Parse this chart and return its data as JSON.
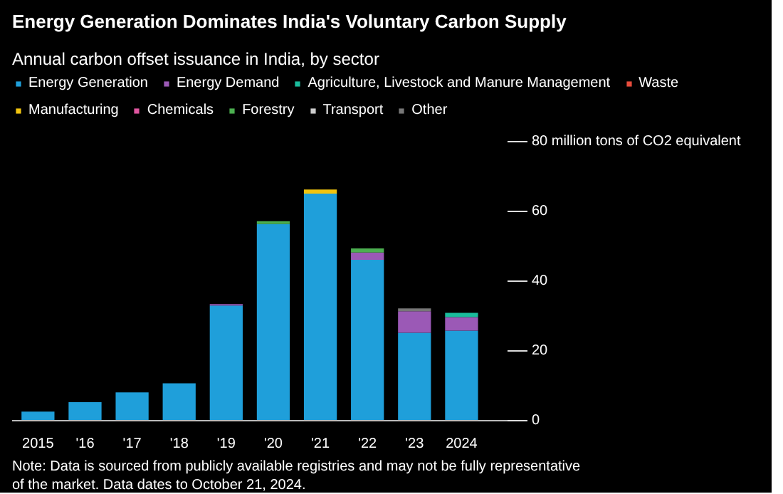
{
  "chart_data": {
    "type": "bar",
    "stacked": true,
    "title": "Energy Generation Dominates India's Voluntary Carbon Supply",
    "subtitle": "Annual carbon offset issuance in India, by sector",
    "categories": [
      "2015",
      "'16",
      "'17",
      "'18",
      "'19",
      "'20",
      "'21",
      "'22",
      "'23",
      "2024"
    ],
    "series": [
      {
        "name": "Energy Generation",
        "color": "#1f9fda",
        "values": [
          2.6,
          5.3,
          8.1,
          10.7,
          33.0,
          56.4,
          65.1,
          46.1,
          25.2,
          25.8
        ]
      },
      {
        "name": "Energy Demand",
        "color": "#9b59b6",
        "values": [
          0,
          0,
          0,
          0,
          0.4,
          0,
          0,
          2.1,
          6.2,
          3.9
        ]
      },
      {
        "name": "Agriculture, Livestock and Manure Management",
        "color": "#1abc9c",
        "values": [
          0,
          0,
          0,
          0,
          0,
          0,
          0,
          0,
          0,
          1.2
        ]
      },
      {
        "name": "Waste",
        "color": "#e74c3c",
        "values": [
          0,
          0,
          0,
          0,
          0,
          0,
          0,
          0,
          0,
          0
        ]
      },
      {
        "name": "Manufacturing",
        "color": "#f1c40f",
        "values": [
          0,
          0,
          0,
          0,
          0,
          0,
          1.2,
          0,
          0,
          0
        ]
      },
      {
        "name": "Chemicals",
        "color": "#e056a0",
        "values": [
          0,
          0,
          0,
          0,
          0,
          0,
          0,
          0,
          0,
          0
        ]
      },
      {
        "name": "Forestry",
        "color": "#4caf50",
        "values": [
          0,
          0,
          0,
          0,
          0,
          0.8,
          0,
          1.2,
          0,
          0
        ]
      },
      {
        "name": "Transport",
        "color": "#cccccc",
        "values": [
          0,
          0,
          0,
          0,
          0,
          0,
          0,
          0,
          0,
          0
        ]
      },
      {
        "name": "Other",
        "color": "#777777",
        "values": [
          0,
          0,
          0,
          0,
          0,
          0,
          0,
          0,
          0.8,
          0
        ]
      }
    ],
    "ylim": [
      0,
      80
    ],
    "yticks": [
      0,
      20,
      40,
      60,
      {
        "value": 80,
        "label": "80 million tons of CO2 equivalent"
      }
    ],
    "grid": false,
    "legend": "top",
    "annotations": [
      "Note: Data is sourced from publicly available registries and may not be fully representative of the market. Data dates to October 21, 2024."
    ]
  }
}
